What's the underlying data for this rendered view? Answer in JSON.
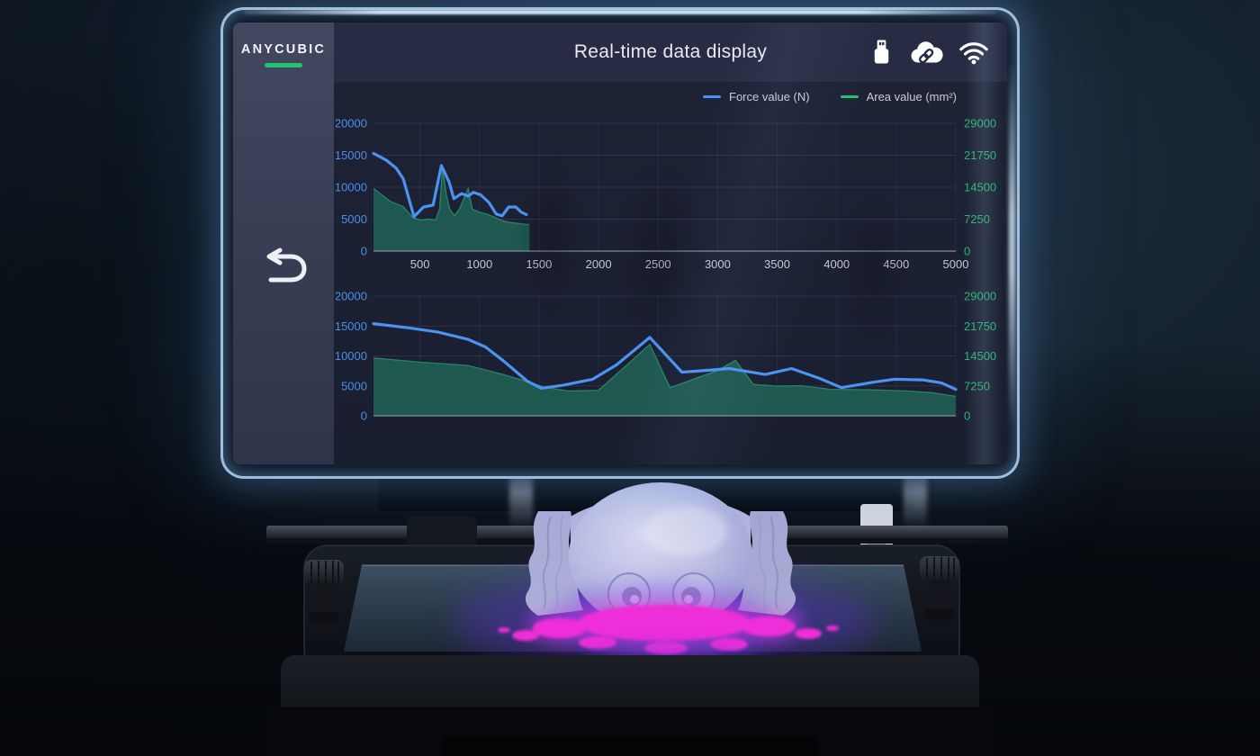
{
  "brand": {
    "name": "ANYCUBIC"
  },
  "header": {
    "title": "Real-time data display",
    "status_icons": [
      "usb-icon",
      "cloud-link-icon",
      "wifi-icon"
    ]
  },
  "legend": {
    "items": [
      {
        "label": "Force value (N)",
        "color": "#4b93f0"
      },
      {
        "label": "Area value (mm²)",
        "color": "#27c06c"
      }
    ]
  },
  "colors": {
    "accent_green": "#24c274",
    "force_line": "#4b93f0",
    "area_fill": "#1f5e53",
    "area_edge": "#2d8a6c",
    "axis_left_labels": "#4a90e8",
    "axis_right_labels": "#26b274",
    "x_labels": "#c3c8d4",
    "resin_pink": "#ee2ed8",
    "uv_purple": "#7c4af0"
  },
  "chart_data": [
    {
      "type": "line",
      "title": "",
      "x_axis": {
        "min": 110,
        "max": 5000,
        "ticks": [
          500,
          1000,
          1500,
          2000,
          2500,
          3000,
          3500,
          4000,
          4500,
          5000
        ],
        "show_labels": true,
        "label_color": "#c3c8d4"
      },
      "left_axis": {
        "max": 20000,
        "ticks": [
          0,
          5000,
          10000,
          15000,
          20000
        ],
        "label_color": "#4a90e8"
      },
      "right_axis": {
        "max": 29000,
        "ticks": [
          0,
          7250,
          14500,
          21750,
          29000
        ],
        "label_color": "#26b274"
      },
      "grid": true,
      "series": [
        {
          "name": "Area value (mm²)",
          "axis": "right",
          "style": "area",
          "line_color": "#2d8a6c",
          "fill_color": "#1f5e53",
          "points": [
            [
              110,
              14200
            ],
            [
              250,
              11300
            ],
            [
              360,
              10100
            ],
            [
              440,
              7600
            ],
            [
              510,
              7000
            ],
            [
              580,
              7300
            ],
            [
              630,
              7000
            ],
            [
              665,
              9500
            ],
            [
              690,
              19000
            ],
            [
              720,
              13000
            ],
            [
              750,
              9500
            ],
            [
              790,
              8000
            ],
            [
              830,
              9500
            ],
            [
              905,
              14200
            ],
            [
              940,
              9500
            ],
            [
              1000,
              8800
            ],
            [
              1060,
              8400
            ],
            [
              1120,
              7800
            ],
            [
              1180,
              7000
            ],
            [
              1260,
              6500
            ],
            [
              1350,
              6200
            ],
            [
              1420,
              6000
            ]
          ]
        },
        {
          "name": "Force value (N)",
          "axis": "left",
          "style": "line",
          "line_color": "#4b93f0",
          "points": [
            [
              110,
              15300
            ],
            [
              220,
              14200
            ],
            [
              300,
              13000
            ],
            [
              360,
              11300
            ],
            [
              450,
              5400
            ],
            [
              530,
              6900
            ],
            [
              610,
              7200
            ],
            [
              680,
              13400
            ],
            [
              745,
              10800
            ],
            [
              785,
              8200
            ],
            [
              850,
              9000
            ],
            [
              905,
              8600
            ],
            [
              950,
              9200
            ],
            [
              1010,
              8800
            ],
            [
              1080,
              7600
            ],
            [
              1140,
              5800
            ],
            [
              1190,
              5500
            ],
            [
              1245,
              6900
            ],
            [
              1305,
              6900
            ],
            [
              1350,
              6100
            ],
            [
              1395,
              5700
            ]
          ]
        }
      ]
    },
    {
      "type": "line",
      "title": "",
      "x_axis": {
        "min": 110,
        "max": 5000,
        "ticks": [
          500,
          1000,
          1500,
          2000,
          2500,
          3000,
          3500,
          4000,
          4500,
          5000
        ],
        "show_labels": false,
        "label_color": "#c3c8d4"
      },
      "left_axis": {
        "max": 20000,
        "ticks": [
          0,
          5000,
          10000,
          15000,
          20000
        ],
        "label_color": "#4a90e8"
      },
      "right_axis": {
        "max": 29000,
        "ticks": [
          0,
          7250,
          14500,
          21750,
          29000
        ],
        "label_color": "#26b274"
      },
      "grid": true,
      "series": [
        {
          "name": "Area value (mm²)",
          "axis": "right",
          "style": "area",
          "line_color": "#2d8a6c",
          "fill_color": "#1f5e53",
          "points": [
            [
              110,
              14000
            ],
            [
              500,
              13000
            ],
            [
              900,
              12200
            ],
            [
              1200,
              10000
            ],
            [
              1400,
              8300
            ],
            [
              1550,
              6900
            ],
            [
              1750,
              6000
            ],
            [
              2000,
              6200
            ],
            [
              2430,
              17300
            ],
            [
              2600,
              6800
            ],
            [
              2800,
              8900
            ],
            [
              3000,
              11000
            ],
            [
              3150,
              13400
            ],
            [
              3300,
              7600
            ],
            [
              3500,
              7200
            ],
            [
              3700,
              7300
            ],
            [
              3950,
              6400
            ],
            [
              4300,
              6300
            ],
            [
              4600,
              6000
            ],
            [
              4800,
              5600
            ],
            [
              5000,
              4700
            ]
          ]
        },
        {
          "name": "Force value (N)",
          "axis": "left",
          "style": "line",
          "line_color": "#4b93f0",
          "points": [
            [
              110,
              15400
            ],
            [
              400,
              14700
            ],
            [
              650,
              14000
            ],
            [
              900,
              12800
            ],
            [
              1050,
              11500
            ],
            [
              1200,
              9200
            ],
            [
              1400,
              5800
            ],
            [
              1520,
              4600
            ],
            [
              1700,
              5100
            ],
            [
              1950,
              6100
            ],
            [
              2150,
              8500
            ],
            [
              2430,
              13100
            ],
            [
              2700,
              7300
            ],
            [
              2850,
              7500
            ],
            [
              3100,
              7900
            ],
            [
              3400,
              6900
            ],
            [
              3620,
              7900
            ],
            [
              3850,
              6300
            ],
            [
              4040,
              4700
            ],
            [
              4300,
              5600
            ],
            [
              4480,
              6100
            ],
            [
              4720,
              6000
            ],
            [
              4880,
              5500
            ],
            [
              5000,
              4400
            ]
          ]
        }
      ]
    }
  ]
}
